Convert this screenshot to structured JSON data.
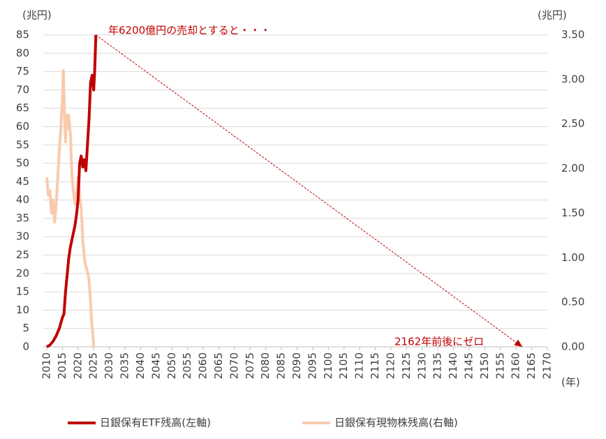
{
  "chart_data": {
    "type": "line",
    "y_label": "(兆円)",
    "y2_label": "(兆円)",
    "x_label": "(年)",
    "xlim": [
      2010,
      2170
    ],
    "xticks": [
      2010,
      2015,
      2020,
      2025,
      2030,
      2035,
      2040,
      2045,
      2050,
      2055,
      2060,
      2065,
      2070,
      2075,
      2080,
      2085,
      2090,
      2095,
      2100,
      2105,
      2110,
      2115,
      2120,
      2125,
      2130,
      2135,
      2140,
      2145,
      2150,
      2155,
      2160,
      2165,
      2170
    ],
    "ylim": [
      0,
      85
    ],
    "yticks": [
      0,
      5,
      10,
      15,
      20,
      25,
      30,
      35,
      40,
      45,
      50,
      55,
      60,
      65,
      70,
      75,
      80,
      85
    ],
    "y2lim": [
      0,
      3.5
    ],
    "y2ticks": [
      {
        "value": 0,
        "label": "0.00"
      },
      {
        "value": 0.5,
        "label": "0.50"
      },
      {
        "value": 1,
        "label": "1.00"
      },
      {
        "value": 1.5,
        "label": "1.50"
      },
      {
        "value": 2,
        "label": "2.00"
      },
      {
        "value": 2.5,
        "label": "2.50"
      },
      {
        "value": 3,
        "label": "3.00"
      },
      {
        "value": 3.5,
        "label": "3.50"
      }
    ],
    "grid": true,
    "series": [
      {
        "name": "日銀保有ETF残高(左軸)",
        "color": "#c00000",
        "x": [
          2010,
          2011,
          2012,
          2013,
          2014,
          2015,
          2015.5,
          2016,
          2017,
          2017.5,
          2018,
          2019,
          2019.5,
          2020,
          2020.5,
          2021,
          2021.5,
          2022,
          2022.5,
          2023,
          2023.5,
          2024,
          2024.5,
          2025,
          2025.3,
          2025.7
        ],
        "values": [
          0,
          0.5,
          1.5,
          3,
          5,
          8,
          9,
          15,
          24,
          27,
          29,
          33,
          36,
          40,
          50,
          52,
          49,
          51,
          48,
          55,
          62,
          72,
          74,
          70,
          75,
          85
        ]
      },
      {
        "name": "日銀保有現物株残高(右軸)",
        "color": "#f8cbad",
        "axis": "y2",
        "x": [
          2010,
          2010.5,
          2011,
          2011.5,
          2012,
          2012.5,
          2013,
          2013.5,
          2014,
          2014.5,
          2015,
          2015.3,
          2015.6,
          2016,
          2016.3,
          2016.6,
          2017,
          2017.3,
          2017.6,
          2018,
          2018.5,
          2019,
          2019.5,
          2020,
          2020.5,
          2021,
          2021.5,
          2022,
          2022.5,
          2023,
          2023.5,
          2024,
          2024.3,
          2024.7,
          2025
        ],
        "values": [
          1.9,
          1.7,
          1.75,
          1.5,
          1.65,
          1.4,
          1.6,
          1.9,
          2.2,
          2.45,
          2.8,
          3.1,
          2.7,
          2.3,
          2.6,
          2.45,
          2.6,
          2.5,
          2.35,
          1.95,
          1.75,
          1.6,
          1.7,
          1.9,
          1.7,
          1.55,
          1.2,
          1.0,
          0.9,
          0.85,
          0.75,
          0.5,
          0.3,
          0.15,
          0
        ]
      }
    ],
    "projection": {
      "color": "#c00000",
      "x": [
        2025.7,
        2162
      ],
      "values": [
        85,
        0
      ]
    },
    "annotations": [
      "年6200億円の売却とすると・・・",
      "2162年前後にゼロ"
    ]
  }
}
